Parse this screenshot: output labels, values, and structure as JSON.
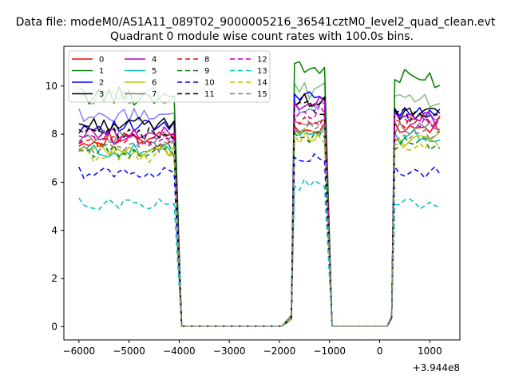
{
  "figure": {
    "suptitle": "Data file: modeM0/AS1A11_089T02_9000005216_36541cztM0_level2_quad_clean.evt"
  },
  "chart_data": {
    "type": "line",
    "title": "Quadrant 0 module wise count rates with 100.0s bins.",
    "xlabel": "",
    "ylabel": "",
    "x_offset_label": "+3.944e8",
    "xlim": [
      -6300,
      1600
    ],
    "ylim": [
      -0.55,
      11.65
    ],
    "x_ticks": [
      -6000,
      -5000,
      -4000,
      -3000,
      -2000,
      -1000,
      0,
      1000
    ],
    "x_tick_labels": [
      "−6000",
      "−5000",
      "−4000",
      "−3000",
      "−2000",
      "−1000",
      "0",
      "1000"
    ],
    "y_ticks": [
      0,
      2,
      4,
      6,
      8,
      10
    ],
    "y_tick_labels": [
      "0",
      "2",
      "4",
      "6",
      "8",
      "10"
    ],
    "grid": false,
    "legend": {
      "placement": "top-left",
      "columns": 4
    },
    "segments": [
      {
        "t0": -6000,
        "t1": -4100,
        "n": 20
      },
      {
        "t0": -1700,
        "t1": -1100,
        "n": 7
      },
      {
        "t0": 300,
        "t1": 1200,
        "n": 10
      }
    ],
    "gaps": [
      {
        "ramp_start": -4100,
        "low_start": -3950,
        "low_end": -1950,
        "ramp_end": -1700
      },
      {
        "ramp_start": -1100,
        "low_start": -950,
        "low_end": 150,
        "ramp_end": 300
      }
    ],
    "series": [
      {
        "name": "0",
        "color": "#ff0000",
        "dash": "solid",
        "levels": [
          7.8,
          8.2,
          8.2
        ],
        "amp": 0.3
      },
      {
        "name": "1",
        "color": "#008000",
        "dash": "solid",
        "levels": [
          9.6,
          10.7,
          10.3
        ],
        "amp": 0.4
      },
      {
        "name": "2",
        "color": "#0000ff",
        "dash": "solid",
        "levels": [
          8.3,
          9.5,
          9.0
        ],
        "amp": 0.3
      },
      {
        "name": "3",
        "color": "#000000",
        "dash": "solid",
        "levels": [
          8.4,
          9.4,
          8.8
        ],
        "amp": 0.3
      },
      {
        "name": "4",
        "color": "#bf00bf",
        "dash": "solid",
        "levels": [
          8.0,
          9.3,
          8.7
        ],
        "amp": 0.3
      },
      {
        "name": "5",
        "color": "#00bfbf",
        "dash": "solid",
        "levels": [
          7.3,
          8.2,
          7.9
        ],
        "amp": 0.3
      },
      {
        "name": "6",
        "color": "#bfbf00",
        "dash": "solid",
        "levels": [
          7.3,
          8.0,
          7.8
        ],
        "amp": 0.3
      },
      {
        "name": "7",
        "color": "#808080",
        "dash": "solid",
        "levels": [
          7.9,
          8.6,
          8.2
        ],
        "amp": 0.3
      },
      {
        "name": "8",
        "color": "#ff0000",
        "dash": "dashed",
        "levels": [
          7.7,
          8.6,
          8.5
        ],
        "amp": 0.3
      },
      {
        "name": "9",
        "color": "#008000",
        "dash": "dashed",
        "levels": [
          7.3,
          7.9,
          7.6
        ],
        "amp": 0.3
      },
      {
        "name": "10",
        "color": "#0000ff",
        "dash": "dashed",
        "levels": [
          6.4,
          7.1,
          6.4
        ],
        "amp": 0.25
      },
      {
        "name": "11",
        "color": "#000000",
        "dash": "dashed",
        "levels": [
          8.0,
          9.1,
          8.8
        ],
        "amp": 0.3
      },
      {
        "name": "12",
        "color": "#bf00bf",
        "dash": "dashed",
        "levels": [
          7.8,
          8.9,
          8.5
        ],
        "amp": 0.3
      },
      {
        "name": "13",
        "color": "#00bfbf",
        "dash": "dashed",
        "levels": [
          5.1,
          5.9,
          5.1
        ],
        "amp": 0.25
      },
      {
        "name": "14",
        "color": "#bfbf00",
        "dash": "dashed",
        "levels": [
          7.1,
          7.9,
          7.6
        ],
        "amp": 0.3
      },
      {
        "name": "15",
        "color": "#808080",
        "dash": "dashed",
        "levels": [
          7.4,
          8.3,
          8.0
        ],
        "amp": 0.3
      }
    ],
    "extra_series": [
      {
        "color": "#80c080",
        "dash": "solid",
        "levels": [
          9.6,
          9.8,
          9.4
        ],
        "amp": 0.35
      },
      {
        "color": "#8080ff",
        "dash": "solid",
        "levels": [
          8.8,
          9.1,
          8.8
        ],
        "amp": 0.3
      }
    ]
  }
}
